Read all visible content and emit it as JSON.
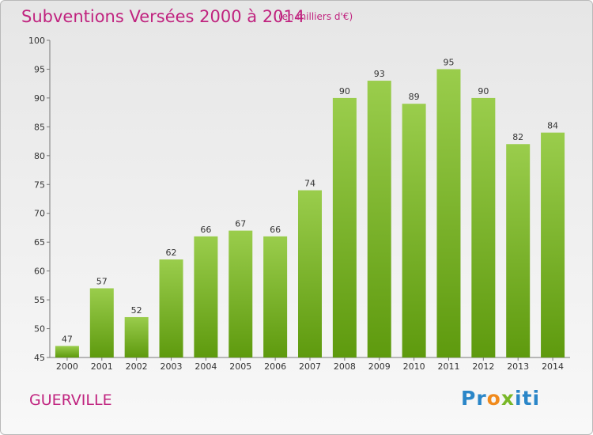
{
  "header": {
    "title": "Subventions Versées 2000 à 2014",
    "subtitle": "(en milliers d'€)"
  },
  "footer": {
    "city": "GUERVILLE",
    "logo": {
      "p1": "Pr",
      "p2": "o",
      "p3": "x",
      "p4": "iti"
    }
  },
  "colors": {
    "title": "#c0237f",
    "bar_top": "#9acd4c",
    "bar_bottom": "#5e9a0e",
    "logo_blue": "#2a86c8",
    "logo_orange": "#f08a1c",
    "logo_green": "#79b728"
  },
  "chart_data": {
    "type": "bar",
    "title": "Subventions Versées 2000 à 2014",
    "subtitle": "(en milliers d'€)",
    "categories": [
      "2000",
      "2001",
      "2002",
      "2003",
      "2004",
      "2005",
      "2006",
      "2007",
      "2008",
      "2009",
      "2010",
      "2011",
      "2012",
      "2013",
      "2014"
    ],
    "values": [
      47,
      57,
      52,
      62,
      66,
      67,
      66,
      74,
      90,
      93,
      89,
      95,
      90,
      82,
      84
    ],
    "ylim": [
      45,
      100
    ],
    "yticks": [
      45,
      50,
      55,
      60,
      65,
      70,
      75,
      80,
      85,
      90,
      95,
      100
    ],
    "grid": false,
    "data_labels": true
  }
}
